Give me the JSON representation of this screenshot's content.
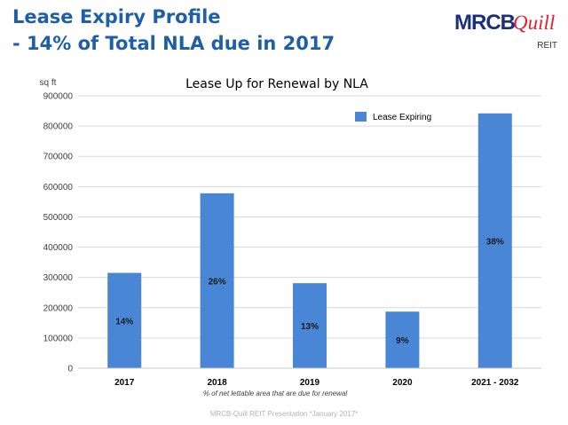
{
  "slide": {
    "title_line1": "Lease Expiry Profile",
    "title_line2": "- 14% of Total NLA due in 2017",
    "footer": "MRCB-Quill REIT Presentation *January 2017*"
  },
  "logo": {
    "brand": "MRCB",
    "script": "Quill",
    "subtitle": "REIT",
    "brand_color": "#1c2f7a",
    "script_color": "#e31e2d"
  },
  "chart_data": {
    "type": "bar",
    "title": "Lease Up for Renewal by NLA",
    "ylabel": "sq ft",
    "xlabel": "% of net lettable area that are due for renewal",
    "categories": [
      "2017",
      "2018",
      "2019",
      "2020",
      "2021 - 2032"
    ],
    "series": [
      {
        "name": "Lease Expiring",
        "values": [
          315000,
          578000,
          281000,
          187000,
          842000
        ],
        "labels": [
          "14%",
          "26%",
          "13%",
          "9%",
          "38%"
        ],
        "color": "#4a86d6"
      }
    ],
    "ylim": [
      0,
      900000
    ],
    "yticks": [
      0,
      100000,
      200000,
      300000,
      400000,
      500000,
      600000,
      700000,
      800000,
      900000
    ],
    "grid": true,
    "legend": "top-right"
  }
}
